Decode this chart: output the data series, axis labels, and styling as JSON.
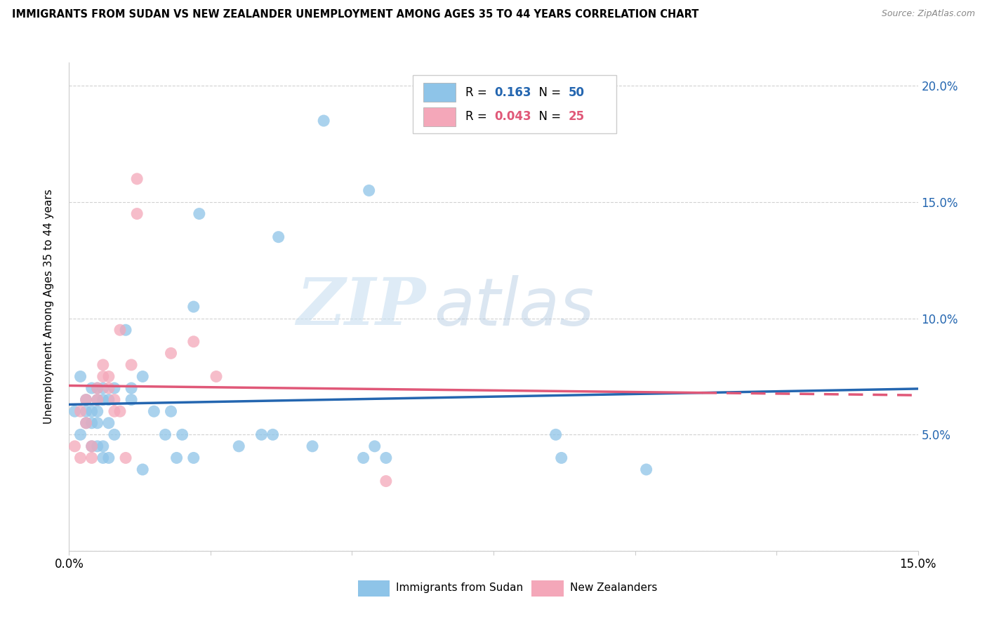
{
  "title": "IMMIGRANTS FROM SUDAN VS NEW ZEALANDER UNEMPLOYMENT AMONG AGES 35 TO 44 YEARS CORRELATION CHART",
  "source": "Source: ZipAtlas.com",
  "ylabel": "Unemployment Among Ages 35 to 44 years",
  "xlim": [
    0.0,
    0.15
  ],
  "ylim": [
    0.0,
    0.21
  ],
  "color_blue": "#8ec4e8",
  "color_pink": "#f4a7b9",
  "color_blue_line": "#2466b0",
  "color_pink_line": "#e05878",
  "watermark_zip": "ZIP",
  "watermark_atlas": "atlas",
  "series1_label": "Immigrants from Sudan",
  "series2_label": "New Zealanders",
  "R1": "0.163",
  "N1": "50",
  "R2": "0.043",
  "N2": "25",
  "blue_x": [
    0.001,
    0.002,
    0.002,
    0.003,
    0.003,
    0.003,
    0.004,
    0.004,
    0.004,
    0.004,
    0.005,
    0.005,
    0.005,
    0.005,
    0.005,
    0.006,
    0.006,
    0.006,
    0.006,
    0.007,
    0.007,
    0.007,
    0.008,
    0.008,
    0.01,
    0.011,
    0.011,
    0.013,
    0.013,
    0.015,
    0.017,
    0.018,
    0.019,
    0.02,
    0.022,
    0.022,
    0.023,
    0.03,
    0.034,
    0.036,
    0.037,
    0.043,
    0.045,
    0.052,
    0.053,
    0.054,
    0.056,
    0.086,
    0.087,
    0.102
  ],
  "blue_y": [
    0.06,
    0.05,
    0.075,
    0.055,
    0.06,
    0.065,
    0.045,
    0.055,
    0.06,
    0.07,
    0.045,
    0.055,
    0.06,
    0.065,
    0.07,
    0.04,
    0.045,
    0.065,
    0.07,
    0.04,
    0.055,
    0.065,
    0.05,
    0.07,
    0.095,
    0.065,
    0.07,
    0.035,
    0.075,
    0.06,
    0.05,
    0.06,
    0.04,
    0.05,
    0.04,
    0.105,
    0.145,
    0.045,
    0.05,
    0.05,
    0.135,
    0.045,
    0.185,
    0.04,
    0.155,
    0.045,
    0.04,
    0.05,
    0.04,
    0.035
  ],
  "pink_x": [
    0.001,
    0.002,
    0.002,
    0.003,
    0.003,
    0.004,
    0.004,
    0.005,
    0.005,
    0.006,
    0.006,
    0.007,
    0.007,
    0.008,
    0.008,
    0.009,
    0.009,
    0.01,
    0.011,
    0.012,
    0.012,
    0.018,
    0.022,
    0.026,
    0.056
  ],
  "pink_y": [
    0.045,
    0.04,
    0.06,
    0.055,
    0.065,
    0.04,
    0.045,
    0.065,
    0.07,
    0.075,
    0.08,
    0.07,
    0.075,
    0.06,
    0.065,
    0.06,
    0.095,
    0.04,
    0.08,
    0.145,
    0.16,
    0.085,
    0.09,
    0.075,
    0.03
  ]
}
